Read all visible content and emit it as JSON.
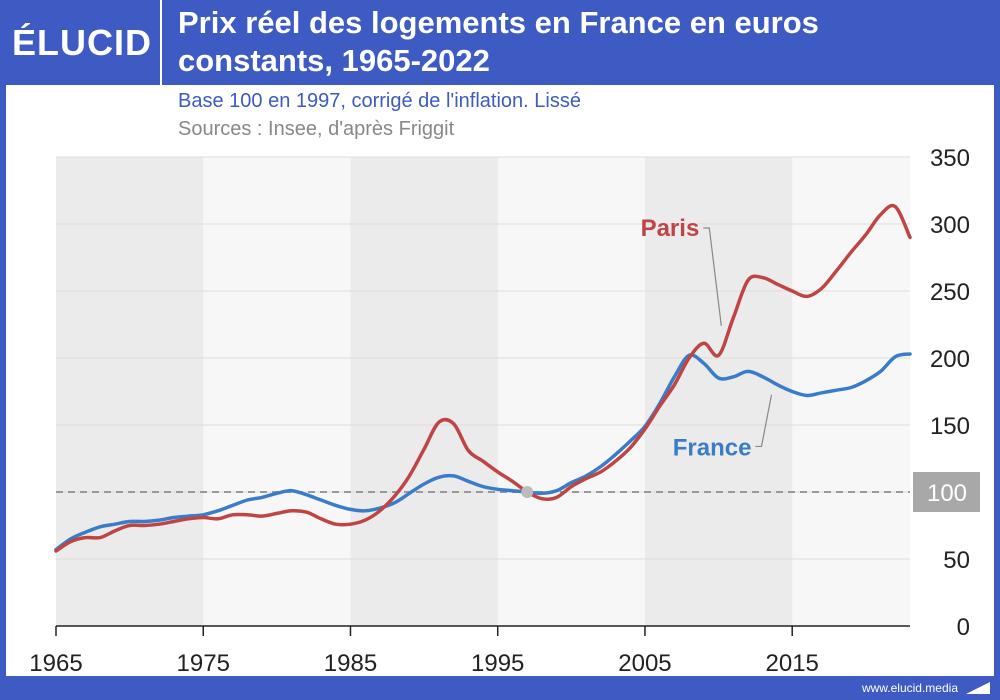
{
  "header": {
    "logo": "ÉLUCID",
    "title": "Prix réel des logements en France en euros constants, 1965-2022",
    "subtitle": "Base 100 en 1997, corrigé de l'inflation. Lissé",
    "source": "Sources : Insee, d'après Friggit"
  },
  "footer": {
    "site": "www.elucid.media"
  },
  "colors": {
    "brand": "#3d5bc2",
    "paris": "#bf4545",
    "france": "#3a7cc8",
    "reference": "#999999"
  },
  "chart_data": {
    "type": "line",
    "xlim": [
      1965,
      2023
    ],
    "ylim": [
      0,
      350
    ],
    "x_ticks": [
      "1965",
      "1975",
      "1985",
      "1995",
      "2005",
      "2015"
    ],
    "y_ticks": [
      "0",
      "50",
      "100",
      "150",
      "200",
      "250",
      "300",
      "350"
    ],
    "y_axis_side": "right",
    "shaded_bands": [
      [
        1965,
        1975
      ],
      [
        1985,
        1995
      ],
      [
        2005,
        2015
      ]
    ],
    "reference_line": {
      "y": 100,
      "label": "100"
    },
    "reference_point": {
      "x": 1997,
      "y": 100
    },
    "series": [
      {
        "name": "Paris",
        "x": [
          1965,
          1966,
          1967,
          1968,
          1969,
          1970,
          1971,
          1972,
          1973,
          1974,
          1975,
          1976,
          1977,
          1978,
          1979,
          1980,
          1981,
          1982,
          1983,
          1984,
          1985,
          1986,
          1987,
          1988,
          1989,
          1990,
          1991,
          1992,
          1993,
          1994,
          1995,
          1996,
          1997,
          1998,
          1999,
          2000,
          2001,
          2002,
          2003,
          2004,
          2005,
          2006,
          2007,
          2008,
          2009,
          2010,
          2011,
          2012,
          2013,
          2014,
          2015,
          2016,
          2017,
          2018,
          2019,
          2020,
          2021,
          2022,
          2023
        ],
        "y": [
          56,
          63,
          66,
          66,
          71,
          75,
          75,
          76,
          78,
          80,
          81,
          80,
          83,
          83,
          82,
          84,
          86,
          85,
          80,
          76,
          76,
          79,
          86,
          97,
          112,
          132,
          152,
          151,
          131,
          123,
          115,
          108,
          100,
          95,
          96,
          104,
          110,
          115,
          123,
          133,
          147,
          164,
          180,
          200,
          211,
          202,
          230,
          258,
          260,
          255,
          250,
          246,
          252,
          265,
          279,
          292,
          307,
          313,
          290
        ]
      },
      {
        "name": "France",
        "x": [
          1965,
          1966,
          1967,
          1968,
          1969,
          1970,
          1971,
          1972,
          1973,
          1974,
          1975,
          1976,
          1977,
          1978,
          1979,
          1980,
          1981,
          1982,
          1983,
          1984,
          1985,
          1986,
          1987,
          1988,
          1989,
          1990,
          1991,
          1992,
          1993,
          1994,
          1995,
          1996,
          1997,
          1998,
          1999,
          2000,
          2001,
          2002,
          2003,
          2004,
          2005,
          2006,
          2007,
          2008,
          2009,
          2010,
          2011,
          2012,
          2013,
          2014,
          2015,
          2016,
          2017,
          2018,
          2019,
          2020,
          2021,
          2022,
          2023
        ],
        "y": [
          57,
          65,
          70,
          74,
          76,
          78,
          78,
          79,
          81,
          82,
          83,
          86,
          90,
          94,
          96,
          99,
          101,
          98,
          94,
          90,
          87,
          86,
          88,
          92,
          99,
          106,
          111,
          112,
          108,
          104,
          102,
          101,
          100,
          99,
          101,
          107,
          112,
          119,
          128,
          138,
          149,
          166,
          186,
          202,
          196,
          185,
          186,
          190,
          186,
          180,
          175,
          172,
          174,
          176,
          178,
          183,
          190,
          201,
          203
        ]
      }
    ],
    "annotations": [
      {
        "text": "Paris",
        "series": "Paris",
        "target_x": 2011
      },
      {
        "text": "France",
        "series": "France",
        "target_x": 2014
      }
    ]
  }
}
